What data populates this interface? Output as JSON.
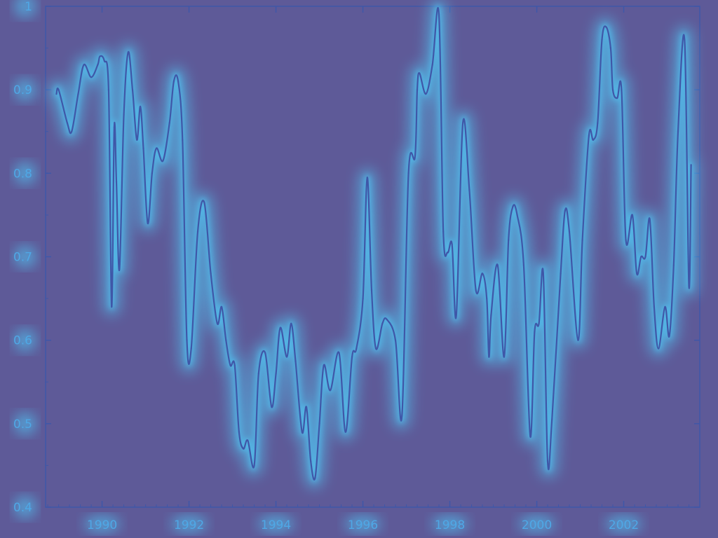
{
  "chart_data": {
    "type": "line",
    "title": "",
    "xlabel": "",
    "ylabel": "",
    "xlim": [
      1988.7,
      2003.75
    ],
    "ylim": [
      0.4,
      1.0
    ],
    "xticks": [
      1990,
      1992,
      1994,
      1996,
      1998,
      2000,
      2002
    ],
    "yticks": [
      0.4,
      0.5,
      0.6,
      0.7,
      0.8,
      0.9,
      1.0
    ],
    "xtick_labels": [
      "1990",
      "1992",
      "1994",
      "1996",
      "1998",
      "2000",
      "2002"
    ],
    "ytick_labels": [
      "0.4",
      "0.5",
      "0.6",
      "0.7",
      "0.8",
      "0.9",
      "1"
    ],
    "grid": false,
    "legend": "none",
    "colors": {
      "background": "#5e5a98",
      "line": "#3f57a8",
      "glow": "#4fd4ff",
      "axis": "#3f57a8",
      "tick_text": "#4fa8e6"
    },
    "series": [
      {
        "x": [
          1988.95,
          1989.0,
          1989.2,
          1989.3,
          1989.45,
          1989.58,
          1989.75,
          1989.9,
          1989.95,
          1990.05,
          1990.15,
          1990.22,
          1990.28,
          1990.33,
          1990.4,
          1990.5,
          1990.6,
          1990.7,
          1990.8,
          1990.88,
          1990.95,
          1991.05,
          1991.15,
          1991.25,
          1991.4,
          1991.55,
          1991.65,
          1991.75,
          1991.85,
          1991.95,
          1992.05,
          1992.2,
          1992.35,
          1992.5,
          1992.65,
          1992.75,
          1992.85,
          1992.95,
          1993.05,
          1993.15,
          1993.25,
          1993.35,
          1993.5,
          1993.6,
          1993.75,
          1993.9,
          1994.0,
          1994.1,
          1994.25,
          1994.35,
          1994.45,
          1994.6,
          1994.7,
          1994.8,
          1994.9,
          1995.0,
          1995.1,
          1995.25,
          1995.45,
          1995.6,
          1995.75,
          1995.85,
          1996.0,
          1996.1,
          1996.2,
          1996.3,
          1996.45,
          1996.55,
          1996.75,
          1996.9,
          1997.05,
          1997.2,
          1997.25,
          1997.3,
          1997.45,
          1997.6,
          1997.75,
          1997.85,
          1997.95,
          1998.05,
          1998.15,
          1998.3,
          1998.45,
          1998.6,
          1998.75,
          1998.85,
          1998.9,
          1998.95,
          1999.1,
          1999.25,
          1999.35,
          1999.45,
          1999.55,
          1999.7,
          1999.85,
          1999.95,
          2000.05,
          2000.15,
          2000.25,
          2000.35,
          2000.55,
          2000.65,
          2000.75,
          2000.95,
          2001.05,
          2001.2,
          2001.3,
          2001.4,
          2001.5,
          2001.6,
          2001.7,
          2001.75,
          2001.85,
          2001.95,
          2002.05,
          2002.2,
          2002.3,
          2002.4,
          2002.5,
          2002.6,
          2002.7,
          2002.8,
          2002.95,
          2003.05,
          2003.15,
          2003.25,
          2003.4,
          2003.5,
          2003.55
        ],
        "y": [
          0.895,
          0.9,
          0.86,
          0.85,
          0.895,
          0.93,
          0.915,
          0.93,
          0.94,
          0.935,
          0.9,
          0.64,
          0.855,
          0.79,
          0.685,
          0.87,
          0.945,
          0.9,
          0.84,
          0.88,
          0.83,
          0.74,
          0.8,
          0.83,
          0.815,
          0.86,
          0.91,
          0.91,
          0.84,
          0.6,
          0.59,
          0.73,
          0.765,
          0.68,
          0.62,
          0.64,
          0.6,
          0.57,
          0.57,
          0.49,
          0.47,
          0.48,
          0.45,
          0.56,
          0.585,
          0.52,
          0.56,
          0.615,
          0.58,
          0.62,
          0.575,
          0.49,
          0.52,
          0.455,
          0.435,
          0.5,
          0.57,
          0.54,
          0.585,
          0.49,
          0.58,
          0.59,
          0.65,
          0.795,
          0.66,
          0.59,
          0.62,
          0.625,
          0.6,
          0.51,
          0.8,
          0.82,
          0.9,
          0.92,
          0.895,
          0.93,
          0.99,
          0.73,
          0.705,
          0.715,
          0.63,
          0.86,
          0.78,
          0.66,
          0.68,
          0.65,
          0.58,
          0.63,
          0.69,
          0.58,
          0.72,
          0.76,
          0.75,
          0.69,
          0.485,
          0.61,
          0.62,
          0.68,
          0.455,
          0.505,
          0.68,
          0.755,
          0.73,
          0.6,
          0.72,
          0.845,
          0.84,
          0.86,
          0.96,
          0.975,
          0.95,
          0.9,
          0.89,
          0.9,
          0.72,
          0.75,
          0.68,
          0.7,
          0.7,
          0.745,
          0.64,
          0.59,
          0.64,
          0.605,
          0.69,
          0.85,
          0.96,
          0.665,
          0.81
        ]
      }
    ]
  }
}
